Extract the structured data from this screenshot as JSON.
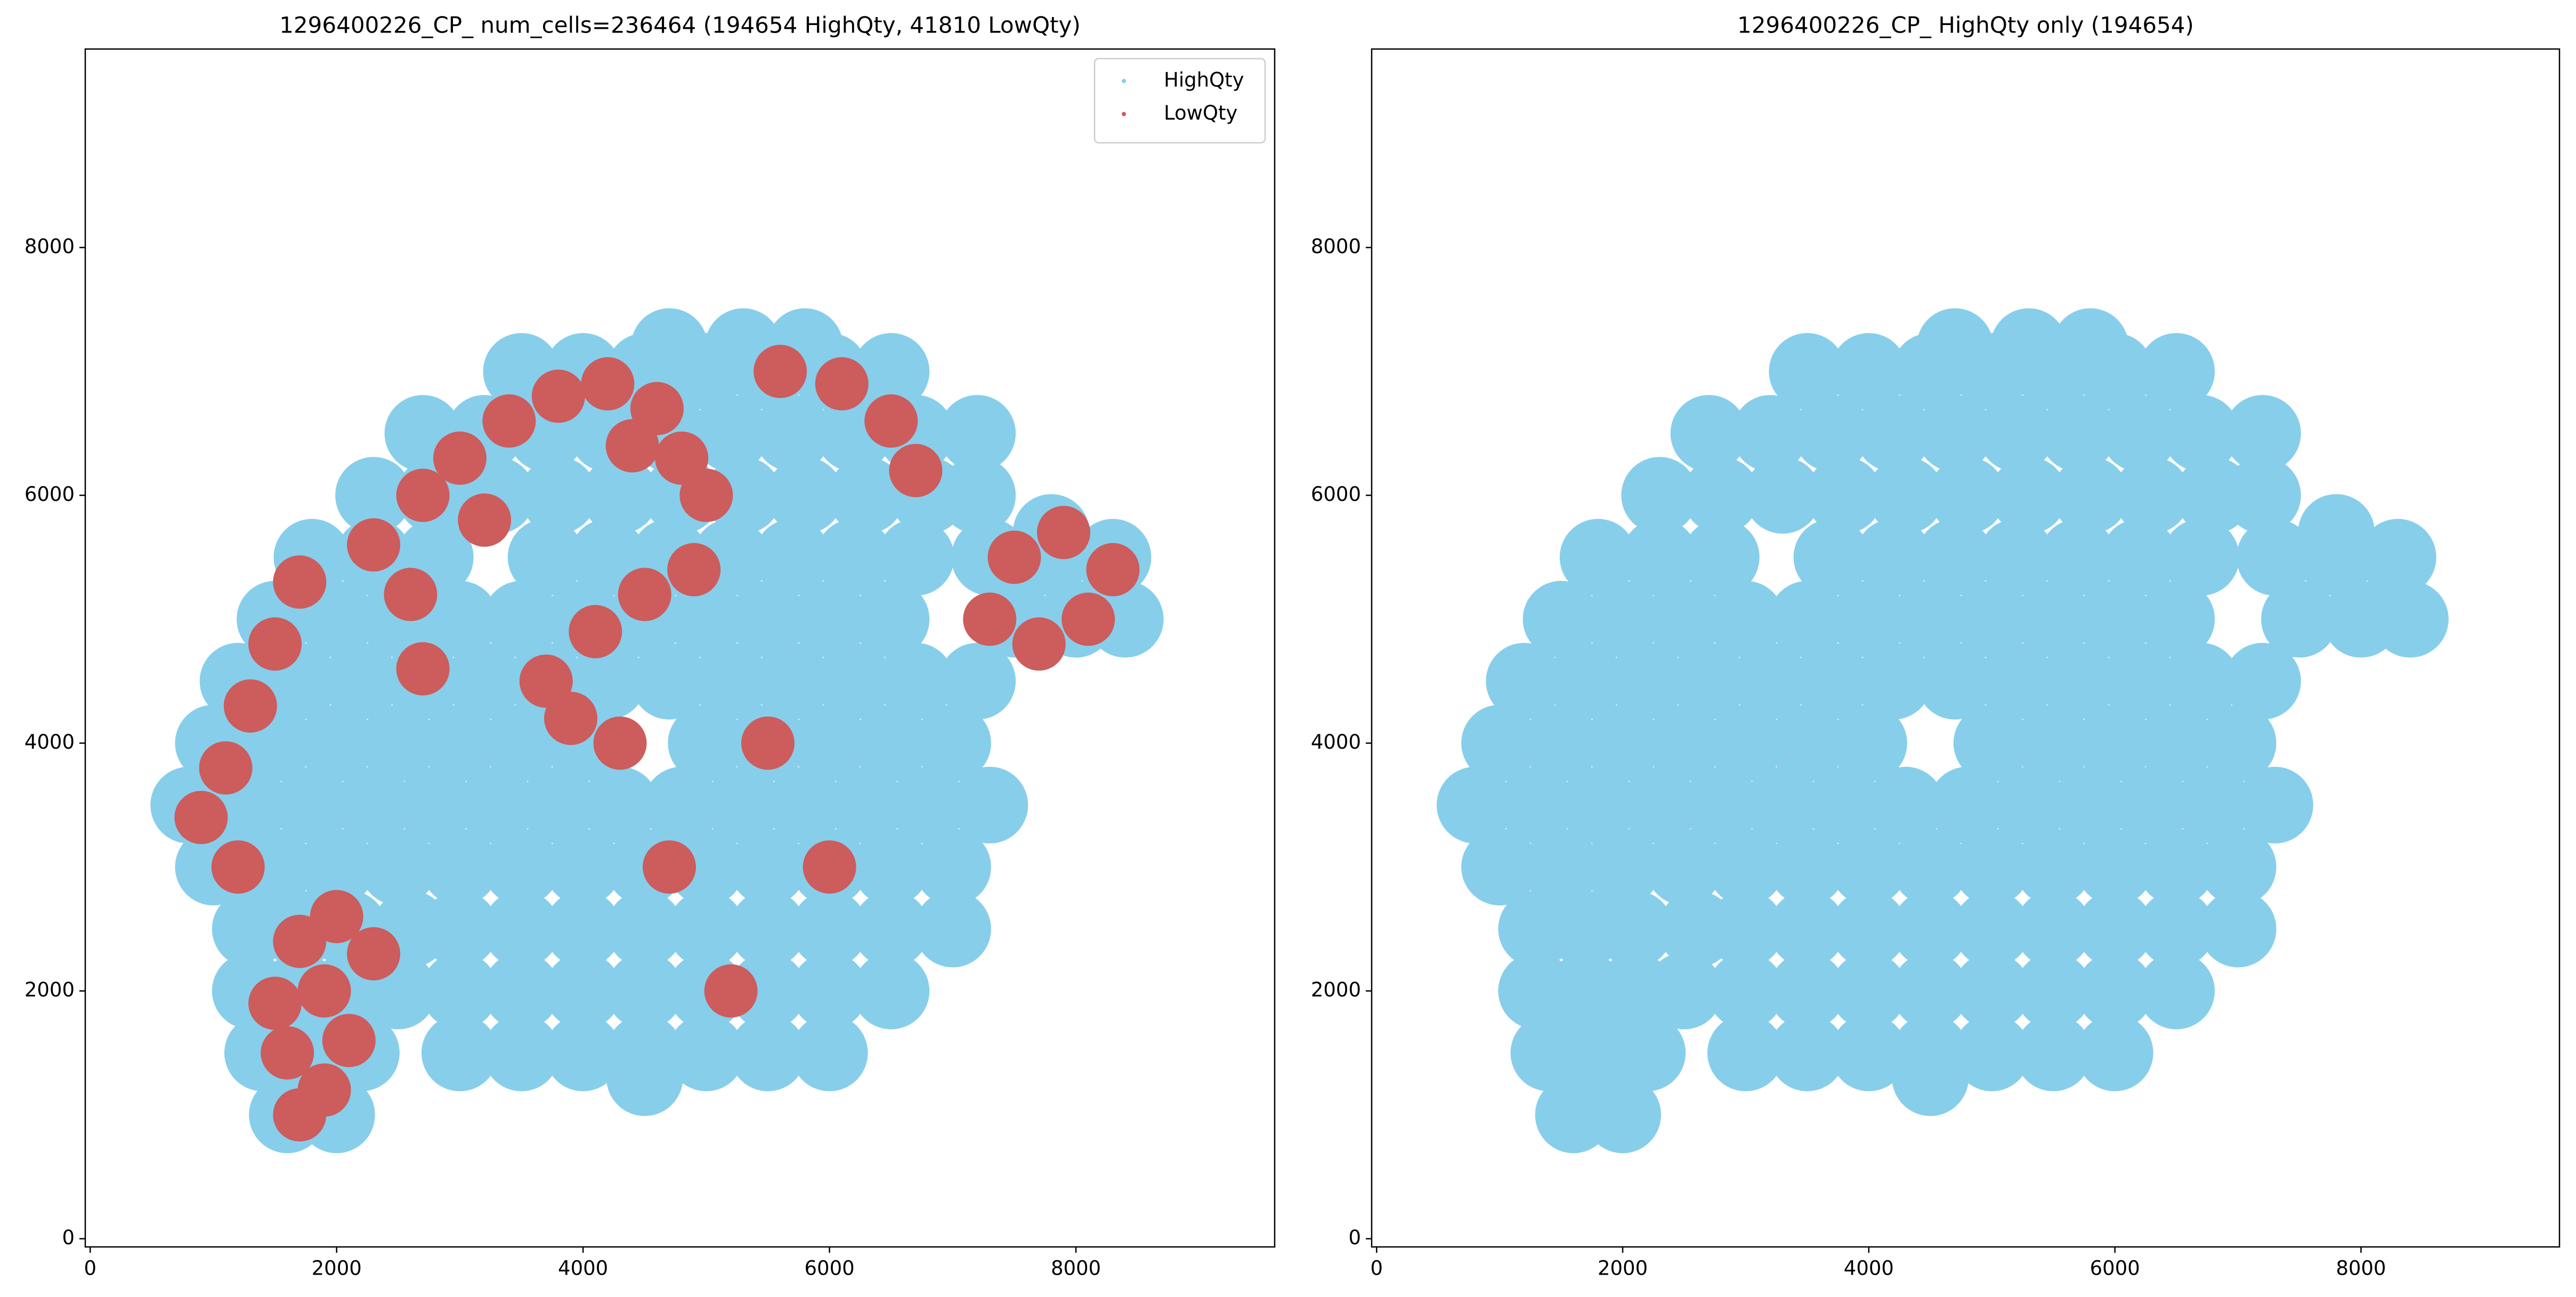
{
  "chart_data": [
    {
      "type": "scatter",
      "title": "1296400226_CP_ num_cells=236464 (194654 HighQty, 41810 LowQty)",
      "xlim": [
        -40,
        9613
      ],
      "ylim": [
        -66,
        9602
      ],
      "xticks": [
        0,
        2000,
        4000,
        6000,
        8000
      ],
      "yticks": [
        0,
        2000,
        4000,
        6000,
        8000
      ],
      "legend": "upper right",
      "series": [
        {
          "name": "HighQty",
          "color": "#87ceeb",
          "x": [
            1600,
            2000,
            4500,
            1400,
            1800,
            2200,
            3000,
            3500,
            4000,
            4500,
            5000,
            5500,
            6000,
            1300,
            1700,
            2100,
            2500,
            3000,
            3500,
            4000,
            4500,
            5000,
            5500,
            6000,
            6500,
            1300,
            1700,
            2100,
            2600,
            3000,
            3500,
            4000,
            4500,
            5000,
            5500,
            6000,
            6500,
            7000,
            1000,
            1500,
            2000,
            2500,
            3000,
            3500,
            4000,
            4500,
            5000,
            5500,
            6000,
            6500,
            7000,
            800,
            1300,
            1800,
            2300,
            2800,
            3300,
            3800,
            4300,
            4800,
            5300,
            5800,
            6300,
            6800,
            7300,
            1000,
            1500,
            2000,
            2500,
            3000,
            3500,
            4000,
            5000,
            5500,
            6000,
            6500,
            7000,
            1200,
            1700,
            2200,
            2700,
            3200,
            3700,
            4200,
            4700,
            5200,
            5700,
            6200,
            6700,
            7200,
            1500,
            2000,
            2500,
            3000,
            3500,
            4000,
            4500,
            5000,
            5500,
            6000,
            6500,
            7500,
            8000,
            8400,
            1800,
            2300,
            2800,
            3700,
            4200,
            4700,
            5200,
            5700,
            6200,
            6700,
            7300,
            7800,
            8300,
            2300,
            2800,
            3300,
            3800,
            4300,
            4800,
            5300,
            5800,
            6300,
            6800,
            7200,
            7800,
            2700,
            3200,
            3700,
            4200,
            4700,
            5200,
            5700,
            6200,
            6700,
            7200,
            3500,
            4000,
            4500,
            5000,
            5500,
            6000,
            6500,
            4700,
            5300,
            5800
          ],
          "values": [
            1000,
            1000,
            1300,
            1500,
            1500,
            1500,
            1500,
            1500,
            1500,
            1500,
            1500,
            1500,
            1500,
            2000,
            2000,
            2000,
            2000,
            2000,
            2000,
            2000,
            2000,
            2000,
            2000,
            2000,
            2000,
            2500,
            2500,
            2500,
            2500,
            2500,
            2500,
            2500,
            2500,
            2500,
            2500,
            2500,
            2500,
            2500,
            3000,
            3000,
            3000,
            3000,
            3000,
            3000,
            3000,
            3000,
            3000,
            3000,
            3000,
            3000,
            3000,
            3500,
            3500,
            3500,
            3500,
            3500,
            3500,
            3500,
            3500,
            3500,
            3500,
            3500,
            3500,
            3500,
            3500,
            4000,
            4000,
            4000,
            4000,
            4000,
            4000,
            4000,
            4000,
            4000,
            4000,
            4000,
            4000,
            4500,
            4500,
            4500,
            4500,
            4500,
            4500,
            4500,
            4500,
            4500,
            4500,
            4500,
            4500,
            4500,
            5000,
            5000,
            5000,
            5000,
            5000,
            5000,
            5000,
            5000,
            5000,
            5000,
            5000,
            5000,
            5000,
            5000,
            5500,
            5500,
            5500,
            5500,
            5500,
            5500,
            5500,
            5500,
            5500,
            5500,
            5500,
            5500,
            5500,
            6000,
            6000,
            6000,
            6000,
            6000,
            6000,
            6000,
            6000,
            6000,
            6000,
            6000,
            5700,
            6500,
            6500,
            6500,
            6500,
            6500,
            6500,
            6500,
            6500,
            6500,
            6500,
            7000,
            7000,
            7000,
            7000,
            7000,
            7000,
            7000,
            7200,
            7200,
            7200
          ]
        },
        {
          "name": "LowQty",
          "color": "#cd5c5c",
          "x": [
            1700,
            1900,
            1600,
            2100,
            1500,
            1900,
            2300,
            1700,
            2000,
            900,
            1100,
            1300,
            1200,
            1500,
            1700,
            2300,
            2700,
            2600,
            2700,
            3000,
            3400,
            3800,
            4200,
            4600,
            4800,
            4400,
            5000,
            3200,
            5600,
            6100,
            6500,
            6700,
            7500,
            7900,
            8300,
            8100,
            7300,
            7700,
            3700,
            4100,
            4500,
            4900,
            3900,
            4300,
            5500,
            6000,
            4700,
            5200
          ],
          "values": [
            1000,
            1200,
            1500,
            1600,
            1900,
            2000,
            2300,
            2400,
            2600,
            3400,
            3800,
            4300,
            3000,
            4800,
            5300,
            5600,
            6000,
            5200,
            4600,
            6300,
            6600,
            6800,
            6900,
            6700,
            6300,
            6400,
            6000,
            5800,
            7000,
            6900,
            6600,
            6200,
            5500,
            5700,
            5400,
            5000,
            5000,
            4800,
            4500,
            4900,
            5200,
            5400,
            4200,
            4000,
            4000,
            3000,
            3000,
            2000
          ]
        }
      ]
    },
    {
      "type": "scatter",
      "title": "1296400226_CP_ HighQty only (194654)",
      "xlim": [
        -40,
        9613
      ],
      "ylim": [
        -66,
        9602
      ],
      "xticks": [
        0,
        2000,
        4000,
        6000,
        8000
      ],
      "yticks": [
        0,
        2000,
        4000,
        6000,
        8000
      ],
      "series": [
        {
          "color": "#87ceeb",
          "x": [
            1600,
            2000,
            4500,
            1400,
            1800,
            2200,
            3000,
            3500,
            4000,
            4500,
            5000,
            5500,
            6000,
            1300,
            1700,
            2100,
            2500,
            3000,
            3500,
            4000,
            4500,
            5000,
            5500,
            6000,
            6500,
            1300,
            1700,
            2100,
            2600,
            3000,
            3500,
            4000,
            4500,
            5000,
            5500,
            6000,
            6500,
            7000,
            1000,
            1500,
            2000,
            2500,
            3000,
            3500,
            4000,
            4500,
            5000,
            5500,
            6000,
            6500,
            7000,
            800,
            1300,
            1800,
            2300,
            2800,
            3300,
            3800,
            4300,
            4800,
            5300,
            5800,
            6300,
            6800,
            7300,
            1000,
            1500,
            2000,
            2500,
            3000,
            3500,
            4000,
            5000,
            5500,
            6000,
            6500,
            7000,
            1200,
            1700,
            2200,
            2700,
            3200,
            3700,
            4200,
            4700,
            5200,
            5700,
            6200,
            6700,
            7200,
            1500,
            2000,
            2500,
            3000,
            3500,
            4000,
            4500,
            5000,
            5500,
            6000,
            6500,
            7500,
            8000,
            8400,
            1800,
            2300,
            2800,
            3700,
            4200,
            4700,
            5200,
            5700,
            6200,
            6700,
            7300,
            7800,
            8300,
            2300,
            2800,
            3300,
            3800,
            4300,
            4800,
            5300,
            5800,
            6300,
            6800,
            7200,
            7800,
            2700,
            3200,
            3700,
            4200,
            4700,
            5200,
            5700,
            6200,
            6700,
            7200,
            3500,
            4000,
            4500,
            5000,
            5500,
            6000,
            6500,
            4700,
            5300,
            5800
          ],
          "values": [
            1000,
            1000,
            1300,
            1500,
            1500,
            1500,
            1500,
            1500,
            1500,
            1500,
            1500,
            1500,
            1500,
            2000,
            2000,
            2000,
            2000,
            2000,
            2000,
            2000,
            2000,
            2000,
            2000,
            2000,
            2000,
            2500,
            2500,
            2500,
            2500,
            2500,
            2500,
            2500,
            2500,
            2500,
            2500,
            2500,
            2500,
            2500,
            3000,
            3000,
            3000,
            3000,
            3000,
            3000,
            3000,
            3000,
            3000,
            3000,
            3000,
            3000,
            3000,
            3500,
            3500,
            3500,
            3500,
            3500,
            3500,
            3500,
            3500,
            3500,
            3500,
            3500,
            3500,
            3500,
            3500,
            4000,
            4000,
            4000,
            4000,
            4000,
            4000,
            4000,
            4000,
            4000,
            4000,
            4000,
            4000,
            4500,
            4500,
            4500,
            4500,
            4500,
            4500,
            4500,
            4500,
            4500,
            4500,
            4500,
            4500,
            4500,
            5000,
            5000,
            5000,
            5000,
            5000,
            5000,
            5000,
            5000,
            5000,
            5000,
            5000,
            5000,
            5000,
            5000,
            5500,
            5500,
            5500,
            5500,
            5500,
            5500,
            5500,
            5500,
            5500,
            5500,
            5500,
            5500,
            5500,
            6000,
            6000,
            6000,
            6000,
            6000,
            6000,
            6000,
            6000,
            6000,
            6000,
            6000,
            5700,
            6500,
            6500,
            6500,
            6500,
            6500,
            6500,
            6500,
            6500,
            6500,
            6500,
            7000,
            7000,
            7000,
            7000,
            7000,
            7000,
            7000,
            7200,
            7200,
            7200
          ]
        }
      ]
    }
  ]
}
